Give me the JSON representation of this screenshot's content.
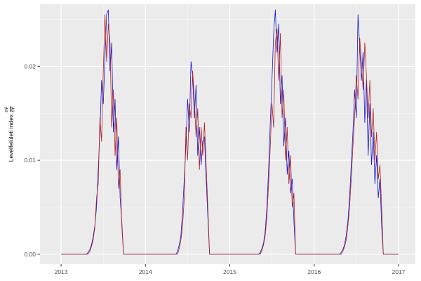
{
  "figure": {
    "background": "#FFFFFF",
    "panel_background": "#EBEBEB",
    "grid_major_color": "#FFFFFF",
    "grid_minor_color": "#F4F4F4",
    "tick_label_color": "#4D4D4D",
    "tick_mark_color": "#333333"
  },
  "axes": {
    "y_label_text": "Levélfelületi index",
    "y_label_fraction_numerator": "m²",
    "y_label_fraction_denominator": "m²",
    "x_ticks": [
      2013,
      2014,
      2015,
      2016,
      2017
    ],
    "x_tick_labels": [
      "2013",
      "2014",
      "2015",
      "2016",
      "2017"
    ],
    "x_minor_ticks": [
      2013.5,
      2014.5,
      2015.5,
      2016.5
    ],
    "y_ticks": [
      0.0,
      0.01,
      0.02
    ],
    "y_tick_labels": [
      "0.00",
      "0.01",
      "0.02"
    ],
    "y_minor_ticks": [
      0.005,
      0.015,
      0.025
    ],
    "x_range": [
      2012.75,
      2017.2
    ],
    "y_range": [
      -0.00105,
      0.0266
    ]
  },
  "chart_data": {
    "type": "line",
    "title": "",
    "xlabel": "",
    "ylabel": "Levélfelületi index m²/m²",
    "grid": true,
    "legend": "none",
    "xlim": [
      2012.75,
      2017.2
    ],
    "ylim": [
      -0.00105,
      0.0266
    ],
    "x_start": 2013.0,
    "x_step": 0.02,
    "series": [
      {
        "name": "blue",
        "color": "#1414D2",
        "values": [
          0,
          0,
          0,
          0,
          0,
          0,
          0,
          0,
          0,
          0,
          0,
          0,
          0,
          0,
          0,
          0,
          0.0002,
          0.0005,
          0.001,
          0.0018,
          0.003,
          0.005,
          0.009,
          0.013,
          0.0185,
          0.016,
          0.021,
          0.0255,
          0.026,
          0.0195,
          0.0225,
          0.013,
          0.0165,
          0.009,
          0.0125,
          0.006,
          0.0035,
          0,
          0,
          0,
          0,
          0,
          0,
          0,
          0,
          0,
          0,
          0,
          0,
          0,
          0,
          0,
          0,
          0,
          0,
          0,
          0,
          0,
          0,
          0,
          0,
          0,
          0,
          0,
          0,
          0,
          0,
          0,
          0,
          0.0003,
          0.001,
          0.002,
          0.0045,
          0.008,
          0.0115,
          0.0165,
          0.013,
          0.0205,
          0.019,
          0.0145,
          0.018,
          0.0105,
          0.0135,
          0.0095,
          0.012,
          0.0125,
          0.008,
          0.004,
          0,
          0,
          0,
          0,
          0,
          0,
          0,
          0,
          0,
          0,
          0,
          0,
          0,
          0,
          0,
          0,
          0,
          0,
          0,
          0,
          0,
          0,
          0,
          0,
          0,
          0,
          0,
          0,
          0,
          0,
          0.0002,
          0.0006,
          0.0012,
          0.0025,
          0.005,
          0.009,
          0.014,
          0.0185,
          0.0235,
          0.026,
          0.0215,
          0.0245,
          0.016,
          0.019,
          0.0115,
          0.0145,
          0.0085,
          0.011,
          0.0065,
          0.008,
          0.0035,
          0,
          0,
          0,
          0,
          0,
          0,
          0,
          0,
          0,
          0,
          0,
          0,
          0,
          0,
          0,
          0,
          0,
          0,
          0,
          0,
          0,
          0,
          0,
          0,
          0,
          0,
          0,
          0.0002,
          0.0005,
          0.001,
          0.002,
          0.0035,
          0.006,
          0.0095,
          0.013,
          0.0175,
          0.0145,
          0.0255,
          0.022,
          0.0185,
          0.0215,
          0.014,
          0.0185,
          0.0105,
          0.016,
          0.0095,
          0.013,
          0.0075,
          0.0105,
          0.006,
          0.008,
          0.003,
          0,
          0,
          0,
          0,
          0,
          0,
          0,
          0,
          0,
          0
        ]
      },
      {
        "name": "dark-red",
        "color": "#B22222",
        "values": [
          0,
          0,
          0,
          0,
          0,
          0,
          0,
          0,
          0,
          0,
          0,
          0,
          0,
          0,
          0,
          0,
          0,
          0.0003,
          0.0008,
          0.0015,
          0.0028,
          0.006,
          0.0075,
          0.0145,
          0.012,
          0.0195,
          0.0255,
          0.0205,
          0.0245,
          0.0225,
          0.0135,
          0.0175,
          0.0105,
          0.0145,
          0.007,
          0.009,
          0.003,
          0,
          0,
          0,
          0,
          0,
          0,
          0,
          0,
          0,
          0,
          0,
          0,
          0,
          0,
          0,
          0,
          0,
          0,
          0,
          0,
          0,
          0,
          0,
          0,
          0,
          0,
          0,
          0,
          0,
          0,
          0,
          0,
          0,
          0.0006,
          0.0015,
          0.003,
          0.006,
          0.0135,
          0.01,
          0.016,
          0.0145,
          0.0195,
          0.0165,
          0.0125,
          0.0155,
          0.009,
          0.0135,
          0.0105,
          0.014,
          0.0095,
          0.005,
          0,
          0,
          0,
          0,
          0,
          0,
          0,
          0,
          0,
          0,
          0,
          0,
          0,
          0,
          0,
          0,
          0,
          0,
          0,
          0,
          0,
          0,
          0,
          0,
          0,
          0,
          0,
          0,
          0,
          0,
          0,
          0.0004,
          0.001,
          0.002,
          0.004,
          0.0075,
          0.0115,
          0.016,
          0.0135,
          0.0225,
          0.024,
          0.0185,
          0.0235,
          0.0145,
          0.0175,
          0.01,
          0.0135,
          0.0075,
          0.0105,
          0.005,
          0.0065,
          0,
          0,
          0,
          0,
          0,
          0,
          0,
          0,
          0,
          0,
          0,
          0,
          0,
          0,
          0,
          0,
          0,
          0,
          0,
          0,
          0,
          0,
          0,
          0,
          0,
          0,
          0,
          0,
          0.0003,
          0.0008,
          0.0015,
          0.003,
          0.005,
          0.008,
          0.0115,
          0.0145,
          0.019,
          0.0165,
          0.023,
          0.0205,
          0.0175,
          0.0225,
          0.019,
          0.0145,
          0.0185,
          0.0125,
          0.0155,
          0.01,
          0.013,
          0.008,
          0.0095,
          0.005,
          0,
          0,
          0,
          0,
          0,
          0,
          0,
          0,
          0,
          0
        ]
      }
    ]
  }
}
